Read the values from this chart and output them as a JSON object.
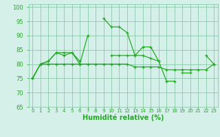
{
  "x": [
    0,
    1,
    2,
    3,
    4,
    5,
    6,
    7,
    8,
    9,
    10,
    11,
    12,
    13,
    14,
    15,
    16,
    17,
    18,
    19,
    20,
    21,
    22,
    23
  ],
  "line1": [
    75,
    80,
    81,
    84,
    83,
    84,
    80,
    90,
    null,
    96,
    93,
    93,
    91,
    83,
    86,
    86,
    81,
    74,
    74,
    null,
    null,
    null,
    83,
    80
  ],
  "line3": [
    75,
    80,
    81,
    84,
    84,
    84,
    81,
    null,
    null,
    null,
    83,
    83,
    83,
    83,
    83,
    82,
    81,
    null,
    null,
    null,
    null,
    null,
    null,
    80
  ],
  "line4": [
    75,
    80,
    80,
    80,
    80,
    80,
    80,
    80,
    80,
    80,
    80,
    80,
    80,
    79,
    79,
    79,
    79,
    78,
    78,
    78,
    78,
    78,
    78,
    80
  ],
  "line5": [
    null,
    null,
    null,
    null,
    null,
    null,
    null,
    null,
    null,
    null,
    null,
    null,
    null,
    null,
    null,
    null,
    null,
    null,
    null,
    77,
    77,
    null,
    null,
    null
  ],
  "background_color": "#d5f0e8",
  "grid_color": "#7bbfa0",
  "line_color": "#22aa22",
  "xlim": [
    -0.5,
    23.5
  ],
  "ylim": [
    65,
    101
  ],
  "yticks": [
    65,
    70,
    75,
    80,
    85,
    90,
    95,
    100
  ],
  "xlabel": "Humidité relative (%)"
}
